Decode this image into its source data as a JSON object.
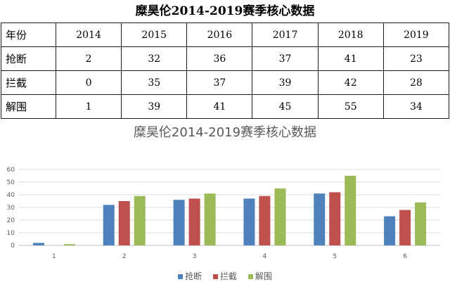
{
  "table": {
    "title": "糜昊伦2014-2019赛季核心数据",
    "header": [
      "年份",
      "2014",
      "2015",
      "2016",
      "2017",
      "2018",
      "2019"
    ],
    "rows": [
      {
        "label": "抢断",
        "values": [
          "2",
          "32",
          "36",
          "37",
          "41",
          "23"
        ]
      },
      {
        "label": "拦截",
        "values": [
          "0",
          "35",
          "37",
          "39",
          "42",
          "28"
        ]
      },
      {
        "label": "解围",
        "values": [
          "1",
          "39",
          "41",
          "45",
          "55",
          "34"
        ]
      }
    ]
  },
  "chart_data": {
    "type": "bar",
    "title": "糜昊伦2014-2019赛季核心数据",
    "categories": [
      "1",
      "2",
      "3",
      "4",
      "5",
      "6"
    ],
    "series": [
      {
        "name": "抢断",
        "values": [
          2,
          32,
          36,
          37,
          41,
          23
        ],
        "color": "#4f81bd"
      },
      {
        "name": "拦截",
        "values": [
          0,
          35,
          37,
          39,
          42,
          28
        ],
        "color": "#c0504d"
      },
      {
        "name": "解围",
        "values": [
          1,
          39,
          41,
          45,
          55,
          34
        ],
        "color": "#9bbb59"
      }
    ],
    "ylim": [
      0,
      60
    ],
    "yticks": [
      "0",
      "10",
      "20",
      "30",
      "40",
      "50",
      "60"
    ],
    "grid": true,
    "legend": "bottom"
  }
}
